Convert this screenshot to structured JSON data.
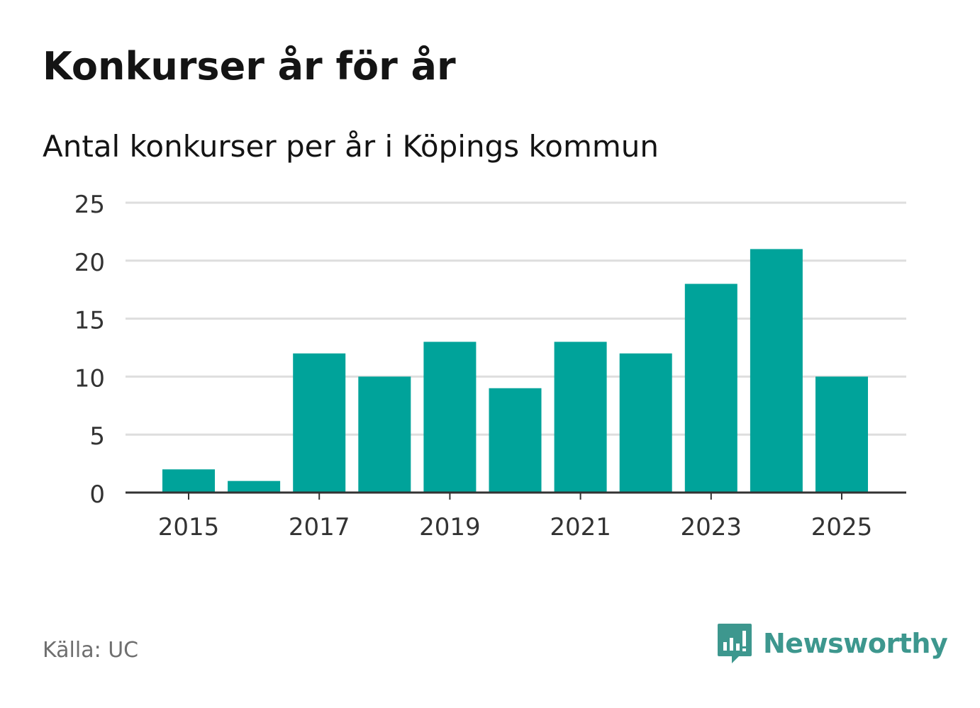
{
  "title": "Konkurser år för år",
  "subtitle": "Antal konkurser per år i Köpings kommun",
  "source": "Källa: UC",
  "brand": {
    "name": "Newsworthy",
    "icon": "newsworthy-logo-icon"
  },
  "colors": {
    "bar": "#00a39a",
    "grid": "#dedede",
    "axis": "#333333",
    "text": "#333333",
    "brand": "#3d978e"
  },
  "chart_data": {
    "type": "bar",
    "categories": [
      "2015",
      "2016",
      "2017",
      "2018",
      "2019",
      "2020",
      "2021",
      "2022",
      "2023",
      "2024",
      "2025"
    ],
    "values": [
      2,
      1,
      12,
      10,
      13,
      9,
      13,
      12,
      18,
      21,
      10
    ],
    "tick_labels_x": [
      "2015",
      "2017",
      "2019",
      "2021",
      "2023",
      "2025"
    ],
    "yticks": [
      0,
      5,
      10,
      15,
      20,
      25
    ],
    "ylim": [
      0,
      25
    ],
    "xlabel": "",
    "ylabel": "",
    "grid": true
  }
}
